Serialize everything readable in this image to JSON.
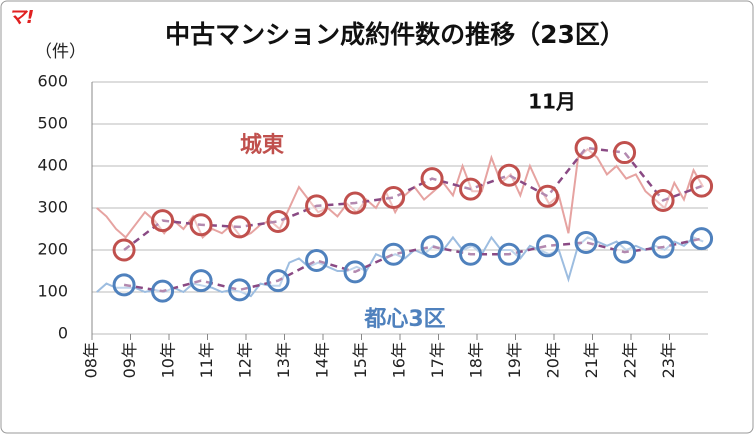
{
  "chart_data": {
    "type": "line",
    "title": "中古マンション成約件数の推移（23区）",
    "y_label": "（件）",
    "logo": "マ!",
    "annotations": [
      "11月"
    ],
    "xlim": [
      2008,
      2024
    ],
    "xticks": [
      {
        "value": 2008,
        "label": "08年"
      },
      {
        "value": 2009,
        "label": "09年"
      },
      {
        "value": 2010,
        "label": "10年"
      },
      {
        "value": 2011,
        "label": "11年"
      },
      {
        "value": 2012,
        "label": "12年"
      },
      {
        "value": 2013,
        "label": "13年"
      },
      {
        "value": 2014,
        "label": "14年"
      },
      {
        "value": 2015,
        "label": "15年"
      },
      {
        "value": 2016,
        "label": "16年"
      },
      {
        "value": 2017,
        "label": "17年"
      },
      {
        "value": 2018,
        "label": "18年"
      },
      {
        "value": 2019,
        "label": "19年"
      },
      {
        "value": 2020,
        "label": "20年"
      },
      {
        "value": 2021,
        "label": "21年"
      },
      {
        "value": 2022,
        "label": "22年"
      },
      {
        "value": 2023,
        "label": "23年"
      }
    ],
    "ylim": [
      0,
      600
    ],
    "yticks": [
      0,
      100,
      200,
      300,
      400,
      500,
      600
    ],
    "grid": true,
    "series": [
      {
        "color": "#e6a3a1",
        "x": [
          2008.125,
          2008.375,
          2008.625,
          2008.875,
          2009.125,
          2009.375,
          2009.625,
          2009.875,
          2010.125,
          2010.375,
          2010.625,
          2010.875,
          2011.125,
          2011.375,
          2011.625,
          2011.875,
          2012.125,
          2012.375,
          2012.625,
          2012.875,
          2013.125,
          2013.375,
          2013.625,
          2013.875,
          2014.125,
          2014.375,
          2014.625,
          2014.875,
          2015.125,
          2015.375,
          2015.625,
          2015.875,
          2016.125,
          2016.375,
          2016.625,
          2016.875,
          2017.125,
          2017.375,
          2017.625,
          2017.875,
          2018.125,
          2018.375,
          2018.625,
          2018.875,
          2019.125,
          2019.375,
          2019.625,
          2019.875,
          2020.125,
          2020.375,
          2020.625,
          2020.875,
          2021.125,
          2021.375,
          2021.625,
          2021.875,
          2022.125,
          2022.375,
          2022.625,
          2022.875,
          2023.125,
          2023.375,
          2023.625,
          2023.875
        ],
        "values": [
          300,
          280,
          250,
          230,
          260,
          290,
          270,
          240,
          270,
          250,
          280,
          230,
          250,
          240,
          260,
          230,
          240,
          260,
          270,
          250,
          300,
          350,
          320,
          290,
          300,
          280,
          310,
          290,
          320,
          300,
          340,
          290,
          330,
          350,
          320,
          340,
          360,
          330,
          400,
          340,
          340,
          420,
          360,
          380,
          330,
          400,
          350,
          310,
          330,
          240,
          420,
          440,
          420,
          380,
          400,
          370,
          380,
          340,
          320,
          300,
          360,
          320,
          390,
          350
        ]
      },
      {
        "color": "#9dbde0",
        "x": [
          2008.125,
          2008.375,
          2008.625,
          2008.875,
          2009.125,
          2009.375,
          2009.625,
          2009.875,
          2010.125,
          2010.375,
          2010.625,
          2010.875,
          2011.125,
          2011.375,
          2011.625,
          2011.875,
          2012.125,
          2012.375,
          2012.625,
          2012.875,
          2013.125,
          2013.375,
          2013.625,
          2013.875,
          2014.125,
          2014.375,
          2014.625,
          2014.875,
          2015.125,
          2015.375,
          2015.625,
          2015.875,
          2016.125,
          2016.375,
          2016.625,
          2016.875,
          2017.125,
          2017.375,
          2017.625,
          2017.875,
          2018.125,
          2018.375,
          2018.625,
          2018.875,
          2019.125,
          2019.375,
          2019.625,
          2019.875,
          2020.125,
          2020.375,
          2020.625,
          2020.875,
          2021.125,
          2021.375,
          2021.625,
          2021.875,
          2022.125,
          2022.375,
          2022.625,
          2022.875,
          2023.125,
          2023.375,
          2023.625,
          2023.875
        ],
        "values": [
          100,
          120,
          110,
          110,
          110,
          100,
          105,
          100,
          110,
          100,
          120,
          115,
          110,
          100,
          105,
          100,
          90,
          120,
          115,
          115,
          170,
          180,
          160,
          170,
          160,
          150,
          150,
          160,
          150,
          190,
          180,
          190,
          180,
          200,
          190,
          210,
          200,
          230,
          200,
          210,
          190,
          230,
          200,
          200,
          180,
          210,
          200,
          190,
          200,
          130,
          210,
          230,
          220,
          210,
          220,
          200,
          210,
          200,
          210,
          200,
          220,
          210,
          230,
          220
        ]
      },
      {
        "name": "城東",
        "color": "#c0504d",
        "markers": true,
        "dashed": true,
        "x": [
          2008.833,
          2009.833,
          2010.833,
          2011.833,
          2012.833,
          2013.833,
          2014.833,
          2015.833,
          2016.833,
          2017.833,
          2018.833,
          2019.833,
          2020.833,
          2021.833,
          2022.833,
          2023.833
        ],
        "values": [
          200,
          270,
          260,
          255,
          268,
          305,
          312,
          325,
          370,
          345,
          378,
          328,
          443,
          432,
          318,
          352
        ]
      },
      {
        "name": "都心3区",
        "color": "#4f81bd",
        "markers": true,
        "dashed": true,
        "x": [
          2008.833,
          2009.833,
          2010.833,
          2011.833,
          2012.833,
          2013.833,
          2014.833,
          2015.833,
          2016.833,
          2017.833,
          2018.833,
          2019.833,
          2020.833,
          2021.833,
          2022.833,
          2023.833
        ],
        "values": [
          117,
          102,
          127,
          105,
          127,
          175,
          148,
          190,
          208,
          190,
          190,
          210,
          218,
          195,
          207,
          227
        ]
      }
    ]
  }
}
